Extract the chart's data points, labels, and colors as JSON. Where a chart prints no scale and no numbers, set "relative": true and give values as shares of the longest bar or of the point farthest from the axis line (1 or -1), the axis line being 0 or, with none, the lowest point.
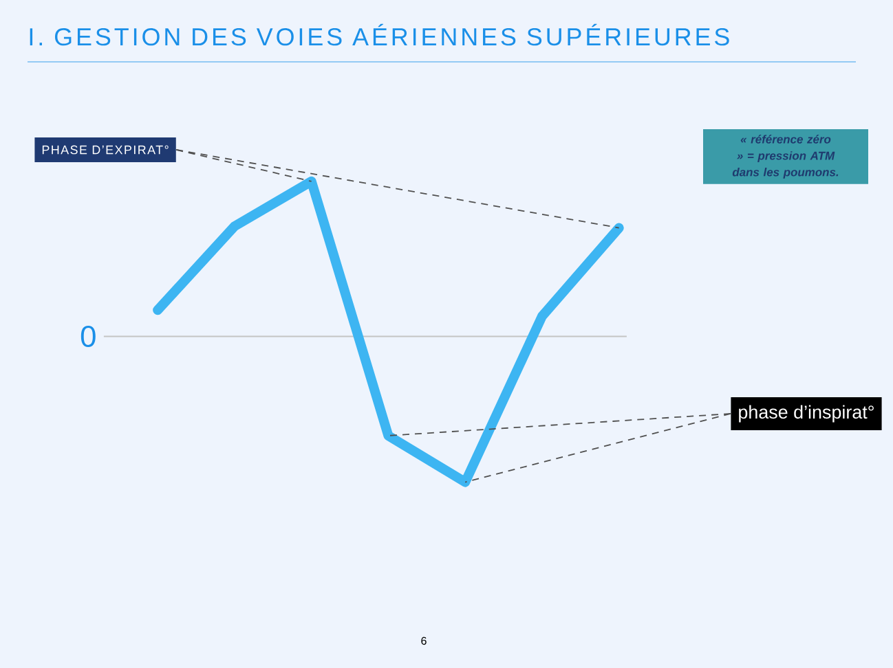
{
  "chart_data": {
    "type": "line",
    "title": "I. GESTION DES VOIES AÉRIENNES SUPÉRIEURES",
    "categories": [
      null,
      null,
      null,
      null,
      null,
      null,
      null
    ],
    "series": [
      {
        "color": "#3db5f2",
        "values": [
          0.17,
          0.71,
          1,
          -0.64,
          -0.94,
          0.13,
          0.7
        ]
      }
    ],
    "relative": true,
    "ref_lines": [
      {
        "axis": "y",
        "value": 0,
        "label": "0",
        "color": "#c4c4c4"
      }
    ],
    "annotations": [
      "PHASE D’EXPIRAT°",
      "phase d’inspirat°",
      "« référence zéro » = pression ATM dans les poumons.",
      "6"
    ]
  }
}
